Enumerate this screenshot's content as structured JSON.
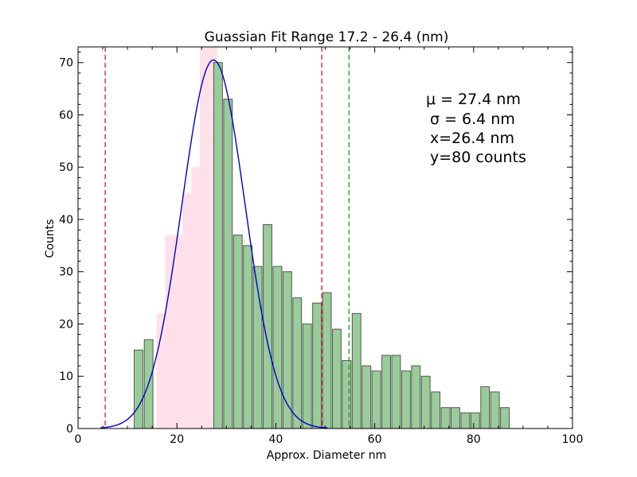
{
  "chart_data": {
    "type": "bar",
    "title": "Guassian Fit Range   17.2 - 26.4 (nm)",
    "xlabel": "Approx. Diameter nm",
    "ylabel": "Counts",
    "xlim": [
      0,
      100
    ],
    "ylim": [
      0,
      73
    ],
    "xticks": [
      "0",
      "20",
      "40",
      "60",
      "80",
      "100"
    ],
    "yticks": [
      "0",
      "10",
      "20",
      "30",
      "40",
      "50",
      "60",
      "70"
    ],
    "grid": false,
    "bin_width": 1.75,
    "fit_bins": [
      {
        "x0": 15.9,
        "count": 22
      },
      {
        "x0": 17.65,
        "count": 37
      },
      {
        "x0": 19.4,
        "count": 37
      },
      {
        "x0": 21.15,
        "count": 45
      },
      {
        "x0": 22.9,
        "count": 50
      },
      {
        "x0": 24.65,
        "count": 73
      },
      {
        "x0": 26.4,
        "count": 73
      }
    ],
    "bins": [
      {
        "x0": 11.35,
        "count": 15
      },
      {
        "x0": 13.4,
        "count": 17
      },
      {
        "x0": 27.45,
        "count": 70
      },
      {
        "x0": 29.45,
        "count": 63
      },
      {
        "x0": 31.45,
        "count": 37
      },
      {
        "x0": 33.45,
        "count": 35
      },
      {
        "x0": 35.45,
        "count": 31
      },
      {
        "x0": 37.45,
        "count": 39
      },
      {
        "x0": 39.45,
        "count": 31
      },
      {
        "x0": 41.45,
        "count": 30
      },
      {
        "x0": 43.45,
        "count": 25
      },
      {
        "x0": 45.45,
        "count": 20
      },
      {
        "x0": 47.45,
        "count": 24
      },
      {
        "x0": 49.45,
        "count": 26
      },
      {
        "x0": 51.45,
        "count": 19
      },
      {
        "x0": 53.45,
        "count": 13
      },
      {
        "x0": 55.45,
        "count": 22
      },
      {
        "x0": 57.45,
        "count": 12
      },
      {
        "x0": 59.45,
        "count": 11
      },
      {
        "x0": 61.45,
        "count": 14
      },
      {
        "x0": 63.45,
        "count": 14
      },
      {
        "x0": 65.45,
        "count": 11
      },
      {
        "x0": 67.45,
        "count": 12
      },
      {
        "x0": 69.45,
        "count": 10
      },
      {
        "x0": 71.45,
        "count": 7
      },
      {
        "x0": 73.45,
        "count": 4
      },
      {
        "x0": 75.45,
        "count": 4
      },
      {
        "x0": 77.45,
        "count": 3
      },
      {
        "x0": 79.45,
        "count": 3
      },
      {
        "x0": 81.45,
        "count": 8
      },
      {
        "x0": 83.45,
        "count": 7
      },
      {
        "x0": 85.45,
        "count": 4
      }
    ],
    "gaussian_fit": {
      "mu": 27.4,
      "sigma": 6.4,
      "amplitude": 70.5,
      "x_start": 4.5,
      "x_end": 50.5,
      "color": "#0000cc"
    },
    "vlines": [
      {
        "x": 5.5,
        "color": "#d62728"
      },
      {
        "x": 49.3,
        "color": "#d62728"
      },
      {
        "x": 54.8,
        "color": "#2ca02c"
      }
    ],
    "colors": {
      "bars": "#99cc99",
      "bar_edge": "#555555",
      "fit_bars": "#ffe0e8"
    },
    "annotation": [
      "μ = 27.4 nm",
      "σ = 6.4 nm",
      "x=26.4 nm",
      "y=80 counts"
    ]
  }
}
